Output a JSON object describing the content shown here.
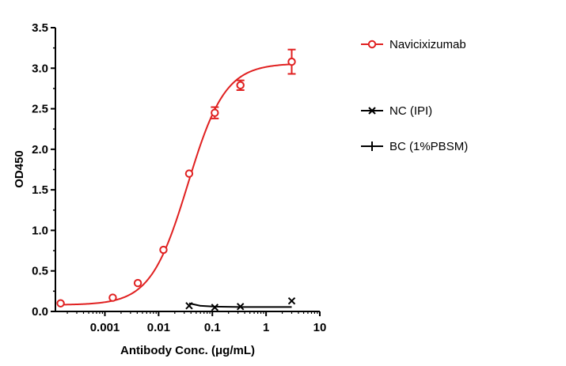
{
  "chart_data": {
    "type": "scatter",
    "xlabel": "Antibody Conc. (μg/mL)",
    "ylabel": "OD450",
    "xscale": "log",
    "xlim": [
      0.00012,
      10
    ],
    "ylim": [
      0,
      3.5
    ],
    "x_ticks": [
      0.001,
      0.01,
      0.1,
      1,
      10
    ],
    "x_tick_labels": [
      "0.001",
      "0.01",
      "0.1",
      "1",
      "10"
    ],
    "y_ticks": [
      0.0,
      0.5,
      1.0,
      1.5,
      2.0,
      2.5,
      3.0,
      3.5
    ],
    "y_tick_labels": [
      "0.0",
      "0.5",
      "1.0",
      "1.5",
      "2.0",
      "2.5",
      "3.0",
      "3.5"
    ],
    "grid": false,
    "legend_position": "right",
    "series": [
      {
        "name": "Navicixizumab",
        "color": "#e02020",
        "marker": "open-circle",
        "fit": "4PL",
        "points": [
          {
            "x": 0.00015,
            "y": 0.1,
            "err": 0.02
          },
          {
            "x": 0.0014,
            "y": 0.17,
            "err": 0.02
          },
          {
            "x": 0.0041,
            "y": 0.35,
            "err": 0.02
          },
          {
            "x": 0.0123,
            "y": 0.76,
            "err": 0.03
          },
          {
            "x": 0.037,
            "y": 1.7,
            "err": 0.03
          },
          {
            "x": 0.111,
            "y": 2.45,
            "err": 0.07
          },
          {
            "x": 0.333,
            "y": 2.79,
            "err": 0.06
          },
          {
            "x": 3.0,
            "y": 3.08,
            "err": 0.15
          }
        ],
        "fit_params": {
          "bottom": 0.08,
          "top": 3.06,
          "ec50": 0.035,
          "hill": 1.25
        }
      },
      {
        "name": "NC (IPI)",
        "color": "#000000",
        "marker": "x",
        "points": [
          {
            "x": 0.037,
            "y": 0.07
          },
          {
            "x": 0.111,
            "y": 0.05
          },
          {
            "x": 0.333,
            "y": 0.06
          },
          {
            "x": 3.0,
            "y": 0.13
          }
        ],
        "curve": [
          {
            "x": 0.037,
            "y": 0.1
          },
          {
            "x": 0.06,
            "y": 0.07
          },
          {
            "x": 0.111,
            "y": 0.06
          },
          {
            "x": 0.333,
            "y": 0.055
          },
          {
            "x": 3.0,
            "y": 0.055
          }
        ]
      },
      {
        "name": "BC (1%PBSM)",
        "color": "#000000",
        "marker": "plus",
        "points": []
      }
    ]
  }
}
